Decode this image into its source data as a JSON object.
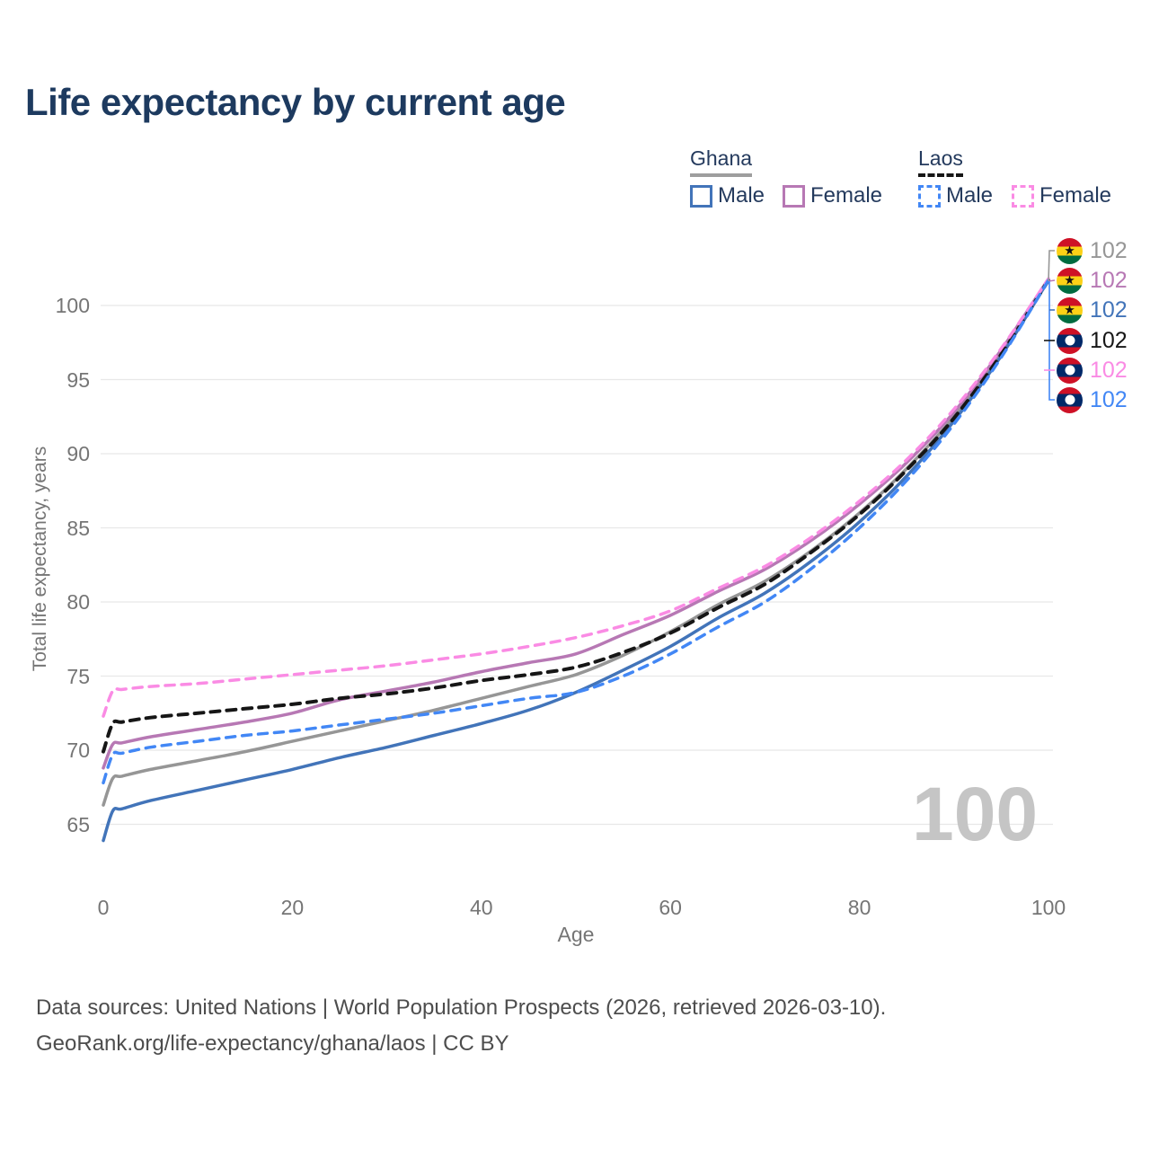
{
  "title": "Life expectancy by current age",
  "legend": {
    "groups": [
      {
        "label": "Ghana",
        "line": "solid",
        "items": [
          {
            "label": "Male",
            "color_key": "ghana_male"
          },
          {
            "label": "Female",
            "color_key": "ghana_female"
          }
        ]
      },
      {
        "label": "Laos",
        "line": "dashed",
        "items": [
          {
            "label": "Male",
            "color_key": "laos_male"
          },
          {
            "label": "Female",
            "color_key": "laos_female"
          }
        ]
      }
    ]
  },
  "colors": {
    "ghana_male": "#4274b9",
    "ghana_female": "#b778b4",
    "ghana_total": "#969696",
    "laos_male": "#4287f5",
    "laos_female": "#fa8be4",
    "laos_total": "#161616",
    "title": "#1d3a5f",
    "legend_text": "#243a5d",
    "axis_text": "#757575",
    "grid": "#e8e8e8",
    "watermark": "#c5c5c5",
    "footer": "#4d4d4d"
  },
  "watermark": "100",
  "footer": {
    "line1": "Data sources: United Nations | World Population Prospects (2026, retrieved 2026-03-10).",
    "line2": "GeoRank.org/life-expectancy/ghana/laos | CC BY"
  },
  "chart_data": {
    "type": "line",
    "title": "Life expectancy by current age",
    "xlabel": "Age",
    "ylabel": "Total life expectancy, years",
    "xlim": [
      0,
      100
    ],
    "ylim": [
      63,
      103
    ],
    "x_ticks": [
      0,
      20,
      40,
      60,
      80,
      100
    ],
    "y_ticks": [
      65,
      70,
      75,
      80,
      85,
      90,
      95,
      100
    ],
    "grid": true,
    "legend_position": "top-right",
    "series": [
      {
        "id": "ghana_total",
        "name": "Ghana",
        "country": "Ghana",
        "line": "solid",
        "color_key": "ghana_total",
        "points": [
          [
            0,
            66.3
          ],
          [
            1,
            68.1
          ],
          [
            2,
            68.25
          ],
          [
            5,
            68.7
          ],
          [
            10,
            69.3
          ],
          [
            15,
            69.9
          ],
          [
            20,
            70.6
          ],
          [
            25,
            71.3
          ],
          [
            30,
            72.0
          ],
          [
            35,
            72.7
          ],
          [
            40,
            73.5
          ],
          [
            45,
            74.3
          ],
          [
            50,
            75.1
          ],
          [
            55,
            76.4
          ],
          [
            60,
            78.0
          ],
          [
            65,
            79.8
          ],
          [
            70,
            81.4
          ],
          [
            75,
            83.5
          ],
          [
            80,
            86.0
          ],
          [
            85,
            89.0
          ],
          [
            90,
            92.5
          ],
          [
            95,
            96.8
          ],
          [
            100,
            101.7
          ]
        ]
      },
      {
        "id": "ghana_female",
        "name": "Ghana Female",
        "country": "Ghana",
        "line": "solid",
        "color_key": "ghana_female",
        "points": [
          [
            0,
            68.8
          ],
          [
            1,
            70.4
          ],
          [
            2,
            70.5
          ],
          [
            5,
            70.9
          ],
          [
            10,
            71.4
          ],
          [
            15,
            71.9
          ],
          [
            20,
            72.5
          ],
          [
            25,
            73.4
          ],
          [
            30,
            74.0
          ],
          [
            35,
            74.6
          ],
          [
            40,
            75.3
          ],
          [
            45,
            75.9
          ],
          [
            50,
            76.5
          ],
          [
            55,
            77.8
          ],
          [
            60,
            79.1
          ],
          [
            65,
            80.7
          ],
          [
            70,
            82.2
          ],
          [
            75,
            84.2
          ],
          [
            80,
            86.6
          ],
          [
            85,
            89.4
          ],
          [
            90,
            92.8
          ],
          [
            95,
            97.0
          ],
          [
            100,
            101.8
          ]
        ]
      },
      {
        "id": "ghana_male",
        "name": "Ghana Male",
        "country": "Ghana",
        "line": "solid",
        "color_key": "ghana_male",
        "points": [
          [
            0,
            63.9
          ],
          [
            1,
            65.9
          ],
          [
            2,
            66.05
          ],
          [
            5,
            66.6
          ],
          [
            10,
            67.3
          ],
          [
            15,
            68.0
          ],
          [
            20,
            68.7
          ],
          [
            25,
            69.5
          ],
          [
            30,
            70.2
          ],
          [
            35,
            71.0
          ],
          [
            40,
            71.8
          ],
          [
            45,
            72.7
          ],
          [
            50,
            73.9
          ],
          [
            55,
            75.4
          ],
          [
            60,
            77.0
          ],
          [
            65,
            78.9
          ],
          [
            70,
            80.6
          ],
          [
            75,
            82.8
          ],
          [
            80,
            85.4
          ],
          [
            85,
            88.5
          ],
          [
            90,
            92.2
          ],
          [
            95,
            96.6
          ],
          [
            100,
            101.7
          ]
        ]
      },
      {
        "id": "laos_total",
        "name": "Laos",
        "country": "Laos",
        "line": "dashed",
        "color_key": "laos_total",
        "points": [
          [
            0,
            69.9
          ],
          [
            1,
            71.8
          ],
          [
            2,
            71.9
          ],
          [
            5,
            72.2
          ],
          [
            10,
            72.5
          ],
          [
            15,
            72.8
          ],
          [
            20,
            73.1
          ],
          [
            25,
            73.5
          ],
          [
            30,
            73.8
          ],
          [
            35,
            74.2
          ],
          [
            40,
            74.7
          ],
          [
            45,
            75.1
          ],
          [
            50,
            75.6
          ],
          [
            55,
            76.6
          ],
          [
            60,
            77.9
          ],
          [
            65,
            79.6
          ],
          [
            70,
            81.2
          ],
          [
            75,
            83.4
          ],
          [
            80,
            85.9
          ],
          [
            85,
            88.9
          ],
          [
            90,
            92.4
          ],
          [
            95,
            96.7
          ],
          [
            100,
            101.7
          ]
        ]
      },
      {
        "id": "laos_female",
        "name": "Laos Female",
        "country": "Laos",
        "line": "dashed",
        "color_key": "laos_female",
        "points": [
          [
            0,
            72.3
          ],
          [
            1,
            74.0
          ],
          [
            2,
            74.1
          ],
          [
            5,
            74.3
          ],
          [
            10,
            74.5
          ],
          [
            15,
            74.8
          ],
          [
            20,
            75.1
          ],
          [
            25,
            75.4
          ],
          [
            30,
            75.7
          ],
          [
            35,
            76.1
          ],
          [
            40,
            76.5
          ],
          [
            45,
            77.0
          ],
          [
            50,
            77.6
          ],
          [
            55,
            78.4
          ],
          [
            60,
            79.4
          ],
          [
            65,
            80.9
          ],
          [
            70,
            82.4
          ],
          [
            75,
            84.4
          ],
          [
            80,
            86.8
          ],
          [
            85,
            89.6
          ],
          [
            90,
            93.0
          ],
          [
            95,
            97.1
          ],
          [
            100,
            101.8
          ]
        ]
      },
      {
        "id": "laos_male",
        "name": "Laos Male",
        "country": "Laos",
        "line": "dashed",
        "color_key": "laos_male",
        "points": [
          [
            0,
            67.8
          ],
          [
            1,
            69.7
          ],
          [
            2,
            69.8
          ],
          [
            5,
            70.2
          ],
          [
            10,
            70.6
          ],
          [
            15,
            71.0
          ],
          [
            20,
            71.3
          ],
          [
            25,
            71.7
          ],
          [
            30,
            72.1
          ],
          [
            35,
            72.5
          ],
          [
            40,
            73.0
          ],
          [
            45,
            73.5
          ],
          [
            50,
            73.9
          ],
          [
            55,
            75.0
          ],
          [
            60,
            76.5
          ],
          [
            65,
            78.3
          ],
          [
            70,
            80.0
          ],
          [
            75,
            82.3
          ],
          [
            80,
            85.0
          ],
          [
            85,
            88.2
          ],
          [
            90,
            92.0
          ],
          [
            95,
            96.5
          ],
          [
            100,
            101.7
          ]
        ]
      }
    ],
    "end_labels": [
      {
        "series": "ghana_total",
        "flag": "ghana",
        "value": "102"
      },
      {
        "series": "ghana_female",
        "flag": "ghana",
        "value": "102"
      },
      {
        "series": "ghana_male",
        "flag": "ghana",
        "value": "102"
      },
      {
        "series": "laos_total",
        "flag": "laos",
        "value": "102"
      },
      {
        "series": "laos_female",
        "flag": "laos",
        "value": "102"
      },
      {
        "series": "laos_male",
        "flag": "laos",
        "value": "102"
      }
    ]
  }
}
